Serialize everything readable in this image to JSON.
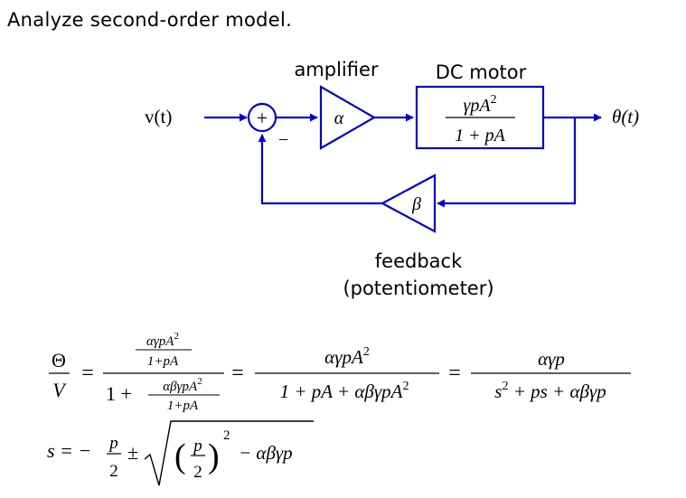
{
  "heading": "Analyze second-order model.",
  "diagram": {
    "input_label": "v(t)",
    "output_label": "θ(t)",
    "sum_symbol": "+",
    "minus_sign": "−",
    "amplifier": {
      "title": "amplifier",
      "gain": "α"
    },
    "motor": {
      "title": "DC motor",
      "numerator": "γpA",
      "numerator_exp": "2",
      "denominator": "1 + pA"
    },
    "feedback": {
      "gain": "β",
      "title_line1": "feedback",
      "title_line2": "(potentiometer)"
    },
    "colors": {
      "wire": "#0000cc",
      "text": "#000000"
    }
  },
  "equations": {
    "lhs_num": "Θ",
    "lhs_den": "V",
    "eq": "=",
    "f1_top_num": "αγpA",
    "f1_top_exp": "2",
    "f1_top_den": "1+pA",
    "f1_bot_prefix": "1 +",
    "f1_bot_num": "αβγpA",
    "f1_bot_exp": "2",
    "f1_bot_den": "1+pA",
    "f2_num": "αγpA",
    "f2_num_exp": "2",
    "f2_den_a": "1 + pA + αβγpA",
    "f2_den_exp": "2",
    "f3_num": "αγp",
    "f3_den_s": "s",
    "f3_den_exp": "2",
    "f3_den_rest": " + ps + αβγp",
    "s_lhs": "s = −",
    "s_frac_num": "p",
    "s_frac_den": "2",
    "s_pm": "±",
    "s_paren_open": "(",
    "s_paren_close": ")",
    "s_inner_num": "p",
    "s_inner_den": "2",
    "s_sq": "2",
    "s_tail": "− αβγp"
  }
}
